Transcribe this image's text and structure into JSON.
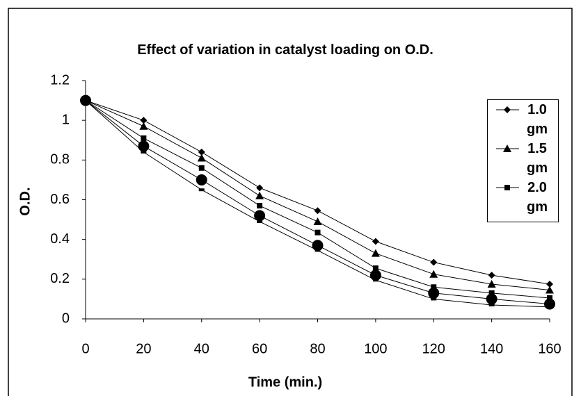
{
  "chart_data": {
    "type": "line",
    "title": "Effect of variation in catalyst loading on O.D.",
    "x_label": "Time (min.)",
    "y_label": "O.D.",
    "x": [
      0,
      20,
      40,
      60,
      80,
      100,
      120,
      140,
      160
    ],
    "xlim": [
      0,
      160
    ],
    "xticks": [
      0,
      20,
      40,
      60,
      80,
      100,
      120,
      140,
      160
    ],
    "ylim": [
      0,
      1.2
    ],
    "yticks": [
      0,
      0.2,
      0.4,
      0.6,
      0.8,
      1,
      1.2
    ],
    "grid": false,
    "legend": "upper right",
    "series": [
      {
        "name": "1.0 gm",
        "color": "#000000",
        "marker": "diamond",
        "values": [
          1.1,
          1.0,
          0.84,
          0.66,
          0.545,
          0.39,
          0.285,
          0.22,
          0.175
        ]
      },
      {
        "name": "1.5 gm",
        "color": "#000000",
        "marker": "triangle",
        "values": [
          1.1,
          0.97,
          0.81,
          0.62,
          0.49,
          0.33,
          0.225,
          0.175,
          0.145
        ]
      },
      {
        "name": "2.0 gm",
        "color": "#000000",
        "marker": "square",
        "values": [
          1.1,
          0.91,
          0.76,
          0.57,
          0.435,
          0.255,
          0.16,
          0.13,
          0.105
        ]
      },
      {
        "color": "#000000",
        "marker": "dash",
        "values": [
          1.1,
          0.84,
          0.65,
          0.49,
          0.345,
          0.195,
          0.1,
          0.07,
          0.06
        ]
      },
      {
        "color": "#000000",
        "marker": "circle",
        "values": [
          1.1,
          0.87,
          0.7,
          0.52,
          0.37,
          0.22,
          0.13,
          0.1,
          0.075
        ]
      }
    ]
  }
}
